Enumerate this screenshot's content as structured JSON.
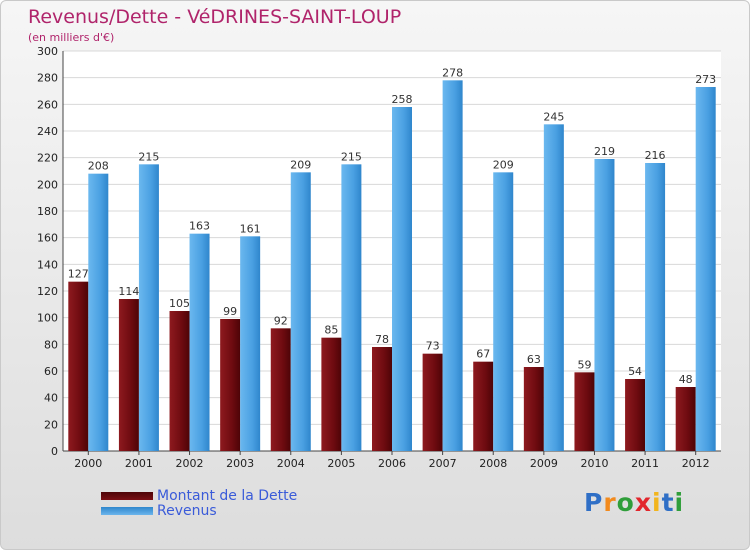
{
  "header": {
    "title": "Revenus/Dette - VéDRINES-SAINT-LOUP",
    "subtitle": "(en milliers d'€)"
  },
  "chart_data": {
    "type": "bar",
    "categories": [
      "2000",
      "2001",
      "2002",
      "2003",
      "2004",
      "2005",
      "2006",
      "2007",
      "2008",
      "2009",
      "2010",
      "2011",
      "2012"
    ],
    "series": [
      {
        "name": "Montant de la Dette",
        "color": "#7a0f14",
        "values": [
          127,
          114,
          105,
          99,
          92,
          85,
          78,
          73,
          67,
          63,
          59,
          54,
          48
        ]
      },
      {
        "name": "Revenus",
        "color": "#4aa0e2",
        "values": [
          208,
          215,
          163,
          161,
          209,
          215,
          258,
          278,
          209,
          245,
          219,
          216,
          273
        ]
      }
    ],
    "ylim": [
      0,
      300
    ],
    "yticks": [
      0,
      20,
      40,
      60,
      80,
      100,
      120,
      140,
      160,
      180,
      200,
      220,
      240,
      260,
      280,
      300
    ],
    "grid": true,
    "legend": "bottom-left"
  },
  "legend": {
    "items": [
      {
        "label": "Montant de la Dette",
        "color": "#7a0f14"
      },
      {
        "label": "Revenus",
        "color": "#4aa0e2"
      }
    ]
  },
  "logo": {
    "letters": [
      "P",
      "r",
      "o",
      "x",
      "i",
      "t",
      "i"
    ],
    "colors": [
      "#2f6fc6",
      "#f28a1d",
      "#2f9e3a",
      "#e2262c",
      "#f2b51d",
      "#2f6fc6",
      "#2f9e3a"
    ]
  }
}
